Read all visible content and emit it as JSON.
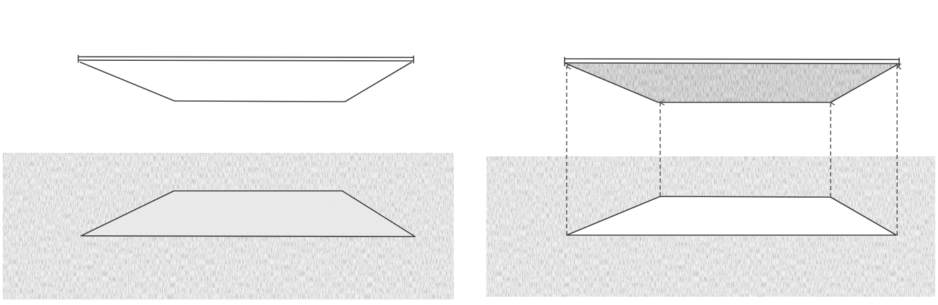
{
  "figure": {
    "panels": [
      {
        "id": "left",
        "caption": ""
      },
      {
        "id": "right",
        "caption": ""
      }
    ],
    "colors": {
      "paper": "#ffffff",
      "ground_shading": "#b9b9b9",
      "ink": "#3a3a3a",
      "cutout_fill": "#f4f4f4",
      "projected_slab_shading": "#a9a9a9"
    }
  }
}
